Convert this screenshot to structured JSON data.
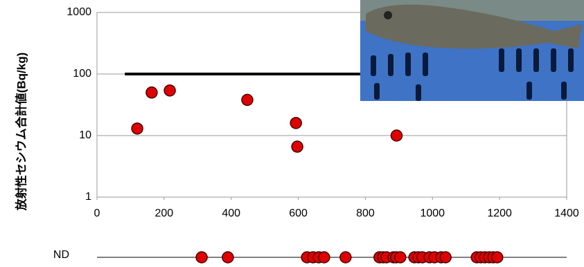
{
  "chart_data": {
    "type": "scatter",
    "ylabel": "放射性セシウム合計値(Bq/kg)",
    "log_y": true,
    "xlim": [
      0,
      1400
    ],
    "xticks": [
      0,
      200,
      400,
      600,
      800,
      1000,
      1200,
      1400
    ],
    "ylim": [
      1,
      1000
    ],
    "yticks": [
      1,
      10,
      100,
      1000
    ],
    "grid": true,
    "color": "#e00000",
    "x": [
      120,
      163,
      217,
      448,
      593,
      597,
      893
    ],
    "y": [
      13,
      50,
      54,
      38,
      16,
      6.6,
      10
    ],
    "hline": {
      "y": 100,
      "x": [
        83,
        1400
      ]
    },
    "nd_label": "ND",
    "nd_x": [
      312,
      390,
      626,
      644,
      661,
      677,
      741,
      842,
      853,
      863,
      884,
      892,
      904,
      946,
      958,
      970,
      991,
      1006,
      1026,
      1039,
      1132,
      1144,
      1156,
      1169,
      1181,
      1193
    ]
  }
}
